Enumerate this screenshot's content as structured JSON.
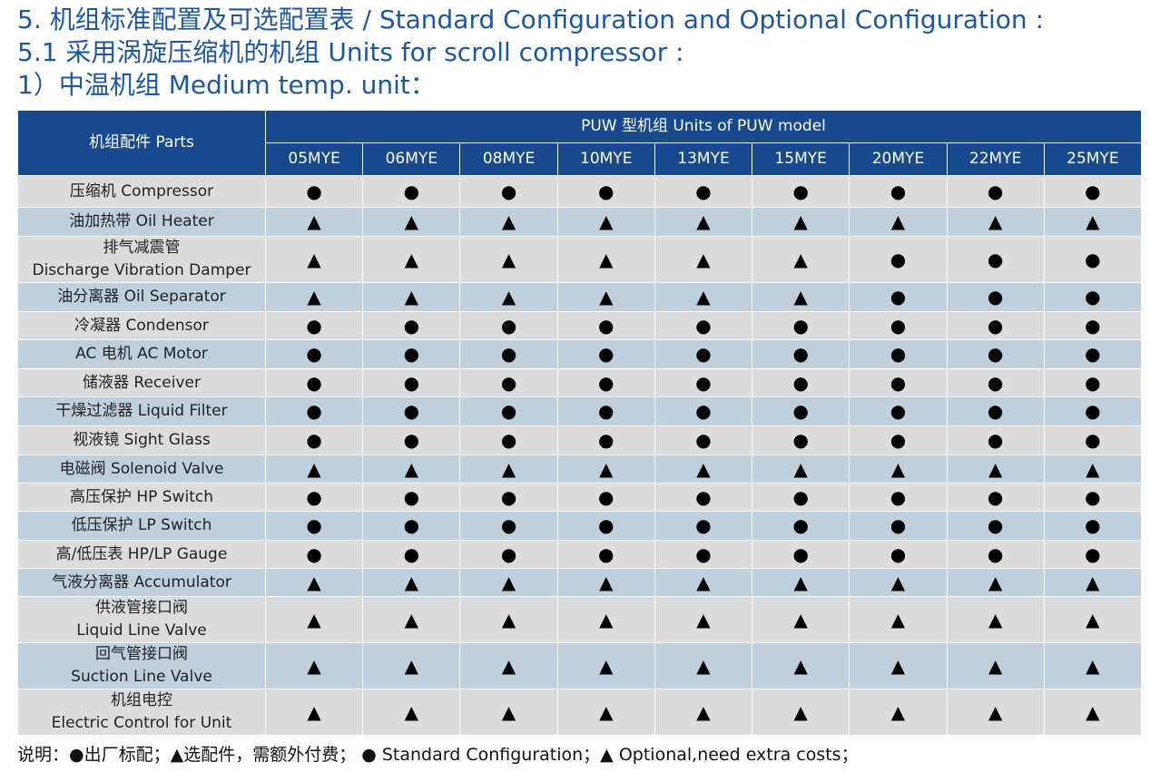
{
  "titles": [
    "5. 机组标准配置及可选配置表 / Standard Configuration and Optional Configuration :",
    "5.1 采用涡旋压缩机的机组 Units for scroll compressor :",
    "1）中温机组 Medium temp. unit："
  ],
  "table": {
    "parts_header": "机组配件 Parts",
    "group_header": "PUW 型机组 Units of PUW model",
    "models": [
      "05MYE",
      "06MYE",
      "08MYE",
      "10MYE",
      "13MYE",
      "15MYE",
      "20MYE",
      "22MYE",
      "25MYE"
    ],
    "symbols": {
      "standard": "●",
      "optional": "▲"
    },
    "rows": [
      {
        "part": [
          "压缩机 Compressor"
        ],
        "values": "SSSSSSSSS"
      },
      {
        "part": [
          "油加热带 Oil Heater"
        ],
        "values": "OOOOOOOOO"
      },
      {
        "part": [
          "排气减震管",
          "Discharge Vibration Damper"
        ],
        "values": "OOOOOOSSS"
      },
      {
        "part": [
          "油分离器 Oil Separator"
        ],
        "values": "OOOOOOSSS"
      },
      {
        "part": [
          "冷凝器  Condensor"
        ],
        "values": "SSSSSSSSS"
      },
      {
        "part": [
          "AC 电机  AC Motor"
        ],
        "values": "SSSSSSSSS"
      },
      {
        "part": [
          "储液器  Receiver"
        ],
        "values": "SSSSSSSSS"
      },
      {
        "part": [
          "干燥过滤器 Liquid Filter"
        ],
        "values": "SSSSSSSSS"
      },
      {
        "part": [
          "视液镜 Sight Glass"
        ],
        "values": "SSSSSSSSS"
      },
      {
        "part": [
          "电磁阀 Solenoid Valve"
        ],
        "values": "OOOOOOOOO"
      },
      {
        "part": [
          "高压保护  HP Switch"
        ],
        "values": "SSSSSSSSS"
      },
      {
        "part": [
          "低压保护  LP Switch"
        ],
        "values": "SSSSSSSSS"
      },
      {
        "part": [
          "高/低压表 HP/LP Gauge"
        ],
        "values": "SSSSSSSSS"
      },
      {
        "part": [
          "气液分离器 Accumulator"
        ],
        "values": "OOOOOOOOO"
      },
      {
        "part": [
          "供液管接口阀",
          "Liquid Line Valve"
        ],
        "values": "OOOOOOOOO"
      },
      {
        "part": [
          "回气管接口阀",
          "Suction Line Valve"
        ],
        "values": "OOOOOOOOO"
      },
      {
        "part": [
          "机组电控",
          "Electric Control for Unit"
        ],
        "values": "OOOOOOOOO"
      }
    ]
  },
  "note": "说明：●出厂标配；▲选配件，需额外付费； ● Standard Configuration；▲ Optional,need extra costs；",
  "colors": {
    "header": "#17498f",
    "row_gray": "#dcdcdc",
    "row_blue": "#bfcfdc",
    "title": "#1d57a3"
  }
}
